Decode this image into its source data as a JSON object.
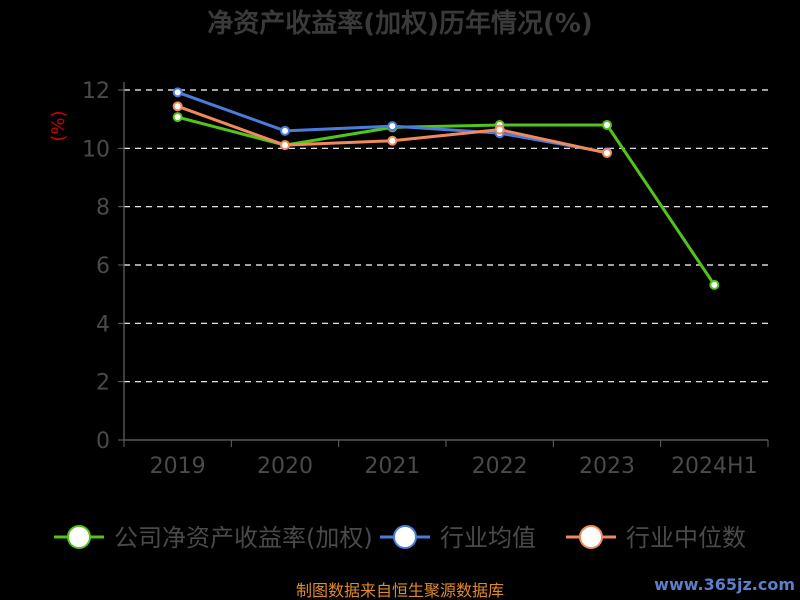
{
  "chart_data": {
    "type": "line",
    "title": "净资产收益率(加权)历年情况(%)",
    "ylabel": "(%)",
    "xlabel": "",
    "categories": [
      "2019",
      "2020",
      "2021",
      "2022",
      "2023",
      "2024H1"
    ],
    "ylim": [
      0,
      12
    ],
    "yticks": [
      "0",
      "2",
      "4",
      "6",
      "8",
      "10",
      "12"
    ],
    "grid": true,
    "legend_position": "bottom",
    "series": [
      {
        "name": "公司净资产收益率(加权)",
        "color": "#52c41a",
        "values": [
          11.07,
          10.11,
          10.72,
          10.8,
          10.8,
          5.32
        ]
      },
      {
        "name": "行业均值",
        "color": "#4a7cdc",
        "values": [
          11.92,
          10.6,
          10.76,
          10.52,
          9.86,
          null
        ]
      },
      {
        "name": "行业中位数",
        "color": "#f08a5d",
        "values": [
          11.44,
          10.11,
          10.26,
          10.64,
          9.84,
          null
        ]
      }
    ]
  },
  "footer": {
    "source": "制图数据来自恒生聚源数据库",
    "watermark": "www.365jz.com"
  },
  "colors": {
    "background": "#000000",
    "grid": "#ffffff",
    "axis": "#666666",
    "ylabel": "#cc0000",
    "source": "#e08a2c",
    "watermark": "#5b7fc9"
  }
}
